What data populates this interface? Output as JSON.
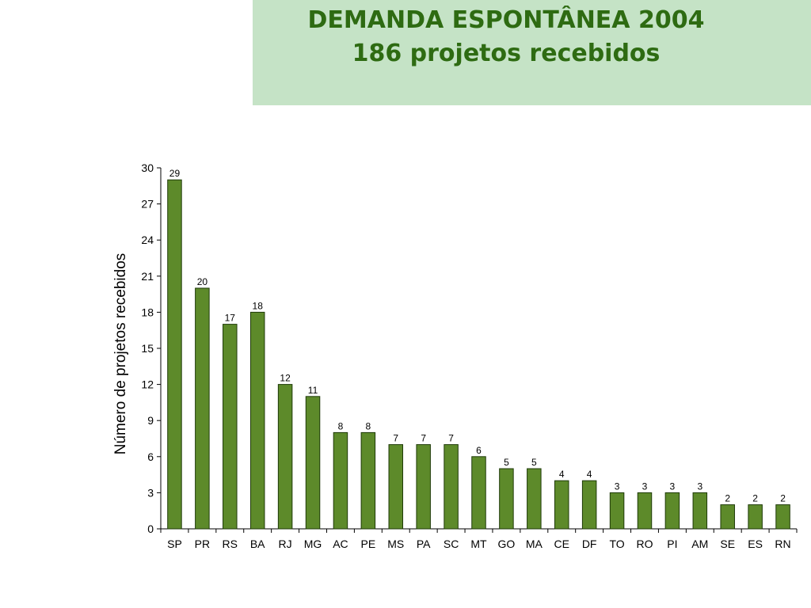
{
  "header": {
    "title_line1": "DEMANDA ESPONTÂNEA 2004",
    "title_line2": "186 projetos recebidos"
  },
  "colors": {
    "bar_fill": "#5d8a2a",
    "bar_stroke": "#1e3a08",
    "header_bg": "#c5e3c6",
    "title_text": "#2e6b12"
  },
  "chart_data": {
    "type": "bar",
    "categories": [
      "SP",
      "PR",
      "RS",
      "BA",
      "RJ",
      "MG",
      "AC",
      "PE",
      "MS",
      "PA",
      "SC",
      "MT",
      "GO",
      "MA",
      "CE",
      "DF",
      "TO",
      "RO",
      "PI",
      "AM",
      "SE",
      "ES",
      "RN"
    ],
    "values": [
      29,
      20,
      17,
      18,
      12,
      11,
      8,
      8,
      7,
      7,
      7,
      6,
      5,
      5,
      4,
      4,
      3,
      3,
      3,
      3,
      2,
      2,
      2
    ],
    "title": "DEMANDA ESPONTÂNEA 2004 186 projetos recebidos",
    "xlabel": "",
    "ylabel": "Número de projetos recebidos",
    "ylim": [
      0,
      30
    ],
    "yticks": [
      0,
      3,
      6,
      9,
      12,
      15,
      18,
      21,
      24,
      27,
      30
    ],
    "grid": false,
    "legend": "none",
    "data_labels": true
  }
}
